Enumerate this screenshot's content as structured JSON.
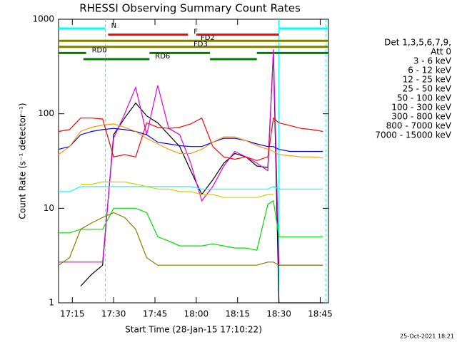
{
  "chart_data": {
    "type": "line",
    "title": "RHESSI Observing Summary Count Rates",
    "x_label": "Start Time (28-Jan-15 17:10:22)",
    "y_label": "Count Rate (s⁻¹ detector⁻¹)",
    "legend_header": [
      "Det 1,3,5,6,7,9,",
      "Att 0"
    ],
    "footer": "25-Oct-2021 18:21",
    "log_y": true,
    "ylim": [
      1,
      1000
    ],
    "yticks": [
      1,
      10,
      100,
      1000
    ],
    "xlim": [
      "17:10",
      "18:48"
    ],
    "xticks": [
      "17:15",
      "17:30",
      "17:45",
      "18:00",
      "18:15",
      "18:30",
      "18:45"
    ],
    "x": [
      "17:10",
      "17:14",
      "17:18",
      "17:22",
      "17:26",
      "17:30",
      "17:34",
      "17:38",
      "17:42",
      "17:46",
      "17:50",
      "17:54",
      "17:58",
      "18:02",
      "18:06",
      "18:10",
      "18:14",
      "18:18",
      "18:22",
      "18:26",
      "18:28",
      "18:30",
      "18:34",
      "18:38",
      "18:42",
      "18:46"
    ],
    "series": [
      {
        "name": "3 - 6 keV",
        "color": "#000000",
        "values": [
          null,
          null,
          1.5,
          2,
          2.5,
          60,
          90,
          130,
          95,
          80,
          60,
          45,
          25,
          14,
          20,
          30,
          38,
          35,
          28,
          27,
          450,
          1,
          1,
          1,
          1,
          1
        ]
      },
      {
        "name": "6 - 12 keV",
        "color": "#e000e0",
        "values": [
          2.7,
          2.7,
          2.7,
          2.7,
          2.7,
          55,
          100,
          190,
          60,
          200,
          70,
          60,
          30,
          12,
          17,
          28,
          40,
          35,
          30,
          25,
          480,
          2.5,
          2.5,
          2.5,
          2.5,
          2.5
        ]
      },
      {
        "name": "12 - 25 keV",
        "color": "#00e000",
        "values": [
          5.5,
          5.5,
          6,
          6,
          6,
          10,
          10,
          10,
          9,
          5,
          4.5,
          4,
          4,
          4,
          4.2,
          4,
          3.8,
          3.8,
          3.6,
          11,
          12,
          5,
          5,
          5,
          5,
          5
        ]
      },
      {
        "name": "25 - 50 keV",
        "color": "#00ffff",
        "values": [
          15,
          15,
          17,
          17,
          17,
          17,
          17,
          17,
          17,
          17,
          17,
          17,
          17,
          16,
          16,
          16,
          16,
          16,
          16,
          16,
          17,
          16,
          16,
          16,
          16,
          16
        ]
      },
      {
        "name": "50 - 100 keV",
        "color": "#d0d000",
        "values": [
          null,
          null,
          18,
          18,
          19,
          19,
          19,
          18,
          17,
          16,
          16,
          15,
          15,
          14,
          14,
          13,
          13,
          13,
          13,
          14,
          14,
          null,
          null,
          null,
          null,
          null
        ]
      },
      {
        "name": "100 - 300 keV",
        "color": "#ff0000",
        "values": [
          65,
          68,
          90,
          90,
          88,
          35,
          37,
          35,
          80,
          72,
          70,
          72,
          78,
          90,
          45,
          35,
          33,
          35,
          32,
          35,
          90,
          80,
          75,
          70,
          68,
          65
        ]
      },
      {
        "name": "300 - 800 keV",
        "color": "#0000ff",
        "values": [
          42,
          45,
          60,
          65,
          68,
          70,
          68,
          65,
          60,
          50,
          48,
          46,
          45,
          45,
          50,
          55,
          55,
          52,
          48,
          45,
          45,
          42,
          40,
          40,
          40,
          40
        ]
      },
      {
        "name": "800 - 7000 keV",
        "color": "#ff9900",
        "values": [
          37,
          45,
          65,
          72,
          76,
          78,
          72,
          65,
          55,
          48,
          42,
          38,
          38,
          42,
          50,
          57,
          57,
          52,
          46,
          42,
          40,
          37,
          36,
          35,
          35,
          34
        ]
      },
      {
        "name": "7000 - 15000 keV",
        "color": "#808000",
        "values": [
          2.5,
          3,
          6,
          7,
          8,
          9,
          8,
          6,
          3,
          2.5,
          2.5,
          2.5,
          2.5,
          2.5,
          2.5,
          2.5,
          2.5,
          2.5,
          2.5,
          2.7,
          2.7,
          2.5,
          2.5,
          2.5,
          2.5,
          2.5
        ]
      }
    ],
    "flags": [
      {
        "label": "N",
        "color": "#00ffff",
        "segments": [
          [
            "17:10",
            "17:27"
          ],
          [
            "18:30",
            "18:48"
          ]
        ]
      },
      {
        "label": "F",
        "color": "#ff0000",
        "segments": [
          [
            "17:28",
            "17:57"
          ],
          [
            "18:00",
            "18:30"
          ]
        ]
      },
      {
        "label": "FD2",
        "color": "#808000",
        "segments": [
          [
            "17:10",
            "18:48"
          ]
        ]
      },
      {
        "label": "FD3",
        "color": "#808000",
        "segments": [
          [
            "17:10",
            "18:48"
          ]
        ]
      },
      {
        "label": "RD0",
        "color": "#008000",
        "segments": [
          [
            "17:10",
            "17:20"
          ],
          [
            "17:43",
            "18:05"
          ],
          [
            "18:22",
            "18:48"
          ]
        ]
      },
      {
        "label": "RD6",
        "color": "#008000",
        "segments": [
          [
            "17:19",
            "17:43"
          ],
          [
            "18:05",
            "18:22"
          ]
        ]
      }
    ],
    "vlines": [
      {
        "x": "17:27",
        "dashed": true
      },
      {
        "x": "18:30",
        "dashed": false
      },
      {
        "x": "18:47",
        "dashed": true
      }
    ]
  }
}
